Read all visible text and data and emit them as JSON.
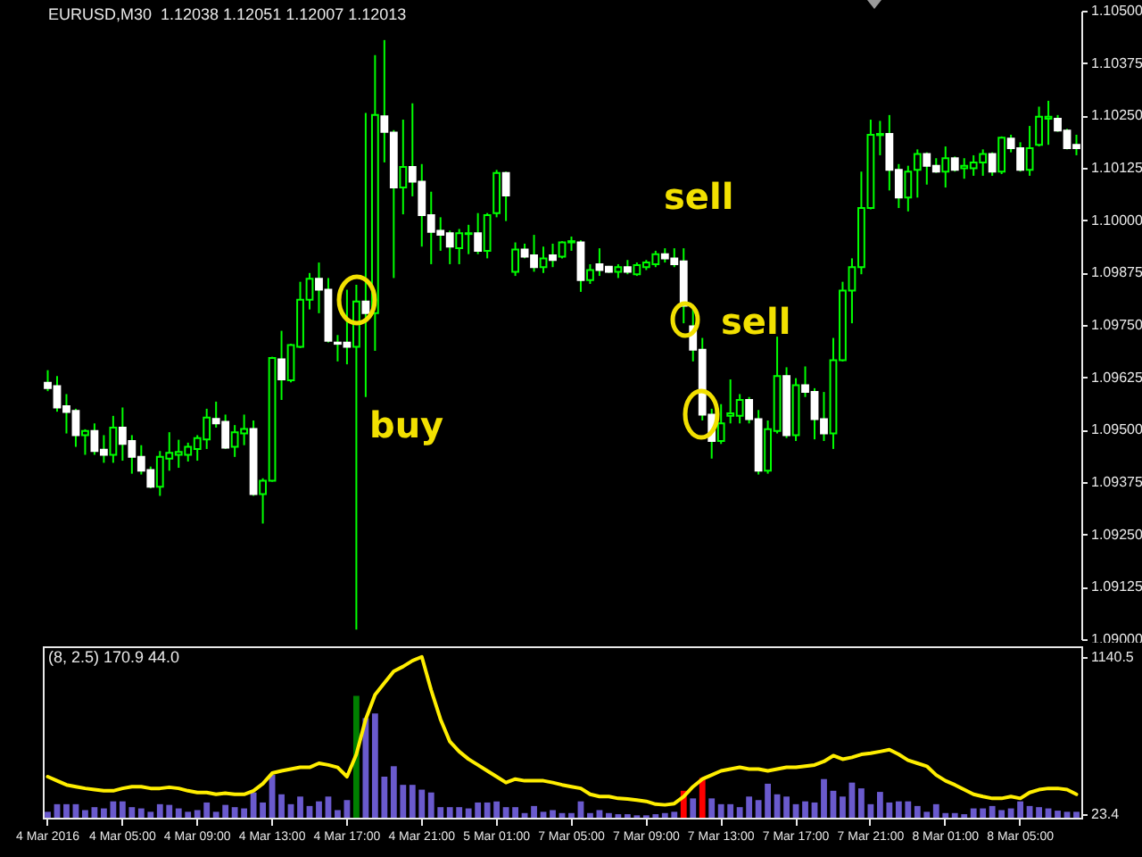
{
  "chart_data": [
    {
      "type": "candlestick",
      "title": "EURUSD,M30  1.12038 1.12051 1.12007 1.12013",
      "ohlc": [
        [
          1.09612,
          1.09642,
          1.09592,
          1.09599
        ],
        [
          1.09604,
          1.09628,
          1.09543,
          1.09553
        ],
        [
          1.09556,
          1.09585,
          1.09491,
          1.09542
        ],
        [
          1.09545,
          1.0955,
          1.09459,
          1.09487
        ],
        [
          1.09487,
          1.09501,
          1.0944,
          1.09497
        ],
        [
          1.09497,
          1.09515,
          1.0944,
          1.09449
        ],
        [
          1.09452,
          1.09487,
          1.09421,
          1.0944
        ],
        [
          1.0944,
          1.09533,
          1.09421,
          1.09505
        ],
        [
          1.09505,
          1.09553,
          1.09426,
          1.09466
        ],
        [
          1.09473,
          1.09487,
          1.09395,
          1.09435
        ],
        [
          1.09435,
          1.09463,
          1.09393,
          1.09402
        ],
        [
          1.09404,
          1.09412,
          1.0936,
          1.09364
        ],
        [
          1.09364,
          1.09449,
          1.09342,
          1.09435
        ],
        [
          1.09431,
          1.09494,
          1.09402,
          1.09445
        ],
        [
          1.0944,
          1.09476,
          1.09409,
          1.09447
        ],
        [
          1.0944,
          1.09469,
          1.09424,
          1.09459
        ],
        [
          1.09454,
          1.09487,
          1.09426,
          1.0948
        ],
        [
          1.09477,
          1.0955,
          1.09454,
          1.09529
        ],
        [
          1.09526,
          1.09567,
          1.09505,
          1.09515
        ],
        [
          1.09519,
          1.09536,
          1.09454,
          1.09457
        ],
        [
          1.09459,
          1.09511,
          1.09435,
          1.09494
        ],
        [
          1.09491,
          1.09536,
          1.09463,
          1.09502
        ],
        [
          1.09502,
          1.09522,
          1.09342,
          1.09346
        ],
        [
          1.09346,
          1.09384,
          1.09276,
          1.09378
        ],
        [
          1.09378,
          1.09674,
          1.09376,
          1.09671
        ],
        [
          1.09668,
          1.09736,
          1.09571,
          1.0962
        ],
        [
          1.09618,
          1.09705,
          1.09613,
          1.09702
        ],
        [
          1.09698,
          1.09853,
          1.09695,
          1.0981
        ],
        [
          1.0981,
          1.09874,
          1.09787,
          1.0986
        ],
        [
          1.0986,
          1.09899,
          1.09778,
          1.09834
        ],
        [
          1.09834,
          1.09862,
          1.09708,
          1.09712
        ],
        [
          1.09708,
          1.09726,
          1.09663,
          1.09705
        ],
        [
          1.09708,
          1.09834,
          1.09656,
          1.09698
        ],
        [
          1.09698,
          1.09846,
          1.09023,
          1.09806
        ],
        [
          1.09806,
          1.10256,
          1.09578,
          1.09778
        ],
        [
          1.09778,
          1.10394,
          1.09688,
          1.10251
        ],
        [
          1.10248,
          1.1043,
          1.10138,
          1.10211
        ],
        [
          1.10209,
          1.10215,
          1.09862,
          1.10078
        ],
        [
          1.10078,
          1.1024,
          1.10014,
          1.10127
        ],
        [
          1.10127,
          1.10279,
          1.10057,
          1.10092
        ],
        [
          1.10092,
          1.10134,
          1.09937,
          1.10012
        ],
        [
          1.10012,
          1.10068,
          1.09895,
          1.09972
        ],
        [
          1.09975,
          1.10007,
          1.09927,
          1.09965
        ],
        [
          1.09969,
          1.09975,
          1.09895,
          1.09937
        ],
        [
          1.09933,
          1.09979,
          1.09895,
          1.09969
        ],
        [
          1.09967,
          1.09989,
          1.09919,
          1.09969
        ],
        [
          1.09969,
          1.10017,
          1.09919,
          1.09927
        ],
        [
          1.09927,
          1.10017,
          1.09909,
          1.10012
        ],
        [
          1.10017,
          1.1012,
          1.10007,
          1.10113
        ],
        [
          1.10113,
          1.10116,
          1.09998,
          1.10059
        ],
        [
          1.09877,
          1.09947,
          1.09867,
          1.0993
        ],
        [
          1.0993,
          1.09944,
          1.09909,
          1.09913
        ],
        [
          1.09916,
          1.09965,
          1.09877,
          1.09888
        ],
        [
          1.09888,
          1.09937,
          1.09874,
          1.09909
        ],
        [
          1.09916,
          1.09944,
          1.09888,
          1.09905
        ],
        [
          1.09913,
          1.0995,
          1.09909,
          1.09947
        ],
        [
          1.09947,
          1.09961,
          1.09927,
          1.0995
        ],
        [
          1.09947,
          1.09952,
          1.09829,
          1.09857
        ],
        [
          1.09857,
          1.09895,
          1.09848,
          1.09881
        ],
        [
          1.09895,
          1.09933,
          1.09867,
          1.09881
        ],
        [
          1.09889,
          1.09891,
          1.09874,
          1.09877
        ],
        [
          1.09877,
          1.09895,
          1.09862,
          1.09888
        ],
        [
          1.09888,
          1.09905,
          1.09871,
          1.09877
        ],
        [
          1.09871,
          1.09899,
          1.09867,
          1.09893
        ],
        [
          1.09888,
          1.09905,
          1.09881,
          1.09899
        ],
        [
          1.09895,
          1.09927,
          1.09888,
          1.09919
        ],
        [
          1.09919,
          1.09933,
          1.09899,
          1.09909
        ],
        [
          1.09909,
          1.09933,
          1.09888,
          1.09895
        ],
        [
          1.09902,
          1.09933,
          1.09754,
          1.09796
        ],
        [
          1.09747,
          1.09789,
          1.09663,
          1.09691
        ],
        [
          1.09691,
          1.09719,
          1.09522,
          1.09536
        ],
        [
          1.09536,
          1.0955,
          1.09431,
          1.09473
        ],
        [
          1.09473,
          1.09561,
          1.09466,
          1.09515
        ],
        [
          1.09533,
          1.0962,
          1.09515,
          1.09539
        ],
        [
          1.09533,
          1.09585,
          1.09515,
          1.09571
        ],
        [
          1.09571,
          1.09578,
          1.09515,
          1.09525
        ],
        [
          1.09525,
          1.09547,
          1.09393,
          1.09402
        ],
        [
          1.09402,
          1.09522,
          1.09395,
          1.09501
        ],
        [
          1.09497,
          1.09722,
          1.09491,
          1.09628
        ],
        [
          1.09628,
          1.09649,
          1.0948,
          1.09487
        ],
        [
          1.09487,
          1.09623,
          1.09473,
          1.09606
        ],
        [
          1.09606,
          1.09651,
          1.09578,
          1.0959
        ],
        [
          1.0959,
          1.09599,
          1.09477,
          1.09525
        ],
        [
          1.09525,
          1.0959,
          1.09473,
          1.09491
        ],
        [
          1.09491,
          1.09719,
          1.09454,
          1.09666
        ],
        [
          1.09666,
          1.09853,
          1.09663,
          1.09832
        ],
        [
          1.09832,
          1.09909,
          1.09754,
          1.09888
        ],
        [
          1.09888,
          1.10116,
          1.09871,
          1.10029
        ],
        [
          1.10029,
          1.1024,
          1.10026,
          1.10204
        ],
        [
          1.10203,
          1.10237,
          1.10155,
          1.10206
        ],
        [
          1.10206,
          1.10251,
          1.10071,
          1.1012
        ],
        [
          1.1012,
          1.10134,
          1.10029,
          1.10054
        ],
        [
          1.10054,
          1.1013,
          1.10021,
          1.10116
        ],
        [
          1.1012,
          1.10169,
          1.10054,
          1.10158
        ],
        [
          1.10158,
          1.10162,
          1.10085,
          1.1013
        ],
        [
          1.1013,
          1.10148,
          1.10113,
          1.10116
        ],
        [
          1.10116,
          1.10176,
          1.10078,
          1.10148
        ],
        [
          1.10148,
          1.10152,
          1.10116,
          1.1012
        ],
        [
          1.10124,
          1.10148,
          1.10099,
          1.1013
        ],
        [
          1.10124,
          1.10155,
          1.10106,
          1.10138
        ],
        [
          1.10138,
          1.10169,
          1.10106,
          1.10158
        ],
        [
          1.10158,
          1.10162,
          1.10106,
          1.10116
        ],
        [
          1.10116,
          1.102,
          1.1011,
          1.10197
        ],
        [
          1.10195,
          1.10204,
          1.10162,
          1.10172
        ],
        [
          1.10172,
          1.10186,
          1.10116,
          1.1012
        ],
        [
          1.1012,
          1.10225,
          1.10106,
          1.10172
        ],
        [
          1.1018,
          1.10271,
          1.10176,
          1.10247
        ],
        [
          1.10242,
          1.10285,
          1.1018,
          1.10247
        ],
        [
          1.10242,
          1.10251,
          1.10211,
          1.10214
        ],
        [
          1.10214,
          1.10218,
          1.10169,
          1.10172
        ],
        [
          1.1018,
          1.10204,
          1.10155,
          1.10172
        ]
      ],
      "ylim": [
        1.09,
        1.105
      ],
      "yticks": [
        {
          "value": 1.09,
          "label": "1.09000"
        },
        {
          "value": 1.09125,
          "label": "1.09125"
        },
        {
          "value": 1.0925,
          "label": "1.09250"
        },
        {
          "value": 1.09375,
          "label": "1.09375"
        },
        {
          "value": 1.095,
          "label": "1.09500"
        },
        {
          "value": 1.09625,
          "label": "1.09625"
        },
        {
          "value": 1.0975,
          "label": "1.09750"
        },
        {
          "value": 1.09875,
          "label": "1.09875"
        },
        {
          "value": 1.1,
          "label": "1.10000"
        },
        {
          "value": 1.10125,
          "label": "1.10125"
        },
        {
          "value": 1.1025,
          "label": "1.10250"
        },
        {
          "value": 1.10375,
          "label": "1.10375"
        },
        {
          "value": 1.105,
          "label": "1.10500"
        }
      ],
      "tick_labels": "y",
      "annotations": [
        "buy",
        "sell",
        "sell"
      ]
    },
    {
      "type": "bar",
      "title": "(8, 2.5) 170.9 44.0",
      "categories": [
        "4 Mar 2016",
        null,
        null,
        null,
        null,
        null,
        null,
        null,
        "4 Mar 05:00",
        null,
        null,
        null,
        null,
        null,
        null,
        null,
        "4 Mar 09:00",
        null,
        null,
        null,
        null,
        null,
        null,
        null,
        "4 Mar 13:00",
        null,
        null,
        null,
        null,
        null,
        null,
        null,
        "4 Mar 17:00",
        null,
        null,
        null,
        null,
        null,
        null,
        null,
        "4 Mar 21:00",
        null,
        null,
        null,
        null,
        null,
        null,
        null,
        "5 Mar 01:00",
        null,
        null,
        null,
        null,
        null,
        null,
        null,
        "7 Mar 05:00",
        null,
        null,
        null,
        null,
        null,
        null,
        null,
        "7 Mar 09:00",
        null,
        null,
        null,
        null,
        null,
        null,
        null,
        "7 Mar 13:00",
        null,
        null,
        null,
        null,
        null,
        null,
        null,
        "7 Mar 17:00",
        null,
        null,
        null,
        null,
        null,
        null,
        null,
        "7 Mar 21:00",
        null,
        null,
        null,
        null,
        null,
        null,
        null,
        "8 Mar 01:00",
        null,
        null,
        null,
        null,
        null,
        null,
        null,
        "8 Mar 05:00",
        null,
        null,
        null,
        null,
        null,
        null
      ],
      "series": [
        {
          "type": "bar",
          "colors": [
            "#6a5acd",
            "#6a5acd",
            "#6a5acd",
            "#6a5acd",
            "#6a5acd",
            "#6a5acd",
            "#6a5acd",
            "#6a5acd",
            "#6a5acd",
            "#6a5acd",
            "#6a5acd",
            "#6a5acd",
            "#6a5acd",
            "#6a5acd",
            "#6a5acd",
            "#6a5acd",
            "#6a5acd",
            "#6a5acd",
            "#6a5acd",
            "#6a5acd",
            "#6a5acd",
            "#6a5acd",
            "#6a5acd",
            "#6a5acd",
            "#6a5acd",
            "#6a5acd",
            "#6a5acd",
            "#6a5acd",
            "#6a5acd",
            "#6a5acd",
            "#6a5acd",
            "#6a5acd",
            "#6a5acd",
            "#008000",
            "#6a5acd",
            "#6a5acd",
            "#6a5acd",
            "#6a5acd",
            "#6a5acd",
            "#6a5acd",
            "#6a5acd",
            "#6a5acd",
            "#6a5acd",
            "#6a5acd",
            "#6a5acd",
            "#6a5acd",
            "#6a5acd",
            "#6a5acd",
            "#6a5acd",
            "#6a5acd",
            "#6a5acd",
            "#6a5acd",
            "#6a5acd",
            "#6a5acd",
            "#6a5acd",
            "#6a5acd",
            "#6a5acd",
            "#6a5acd",
            "#6a5acd",
            "#6a5acd",
            "#6a5acd",
            "#6a5acd",
            "#6a5acd",
            "#6a5acd",
            "#6a5acd",
            "#6a5acd",
            "#6a5acd",
            "#6a5acd",
            "#ff0000",
            "#6a5acd",
            "#ff0000",
            "#6a5acd",
            "#6a5acd",
            "#6a5acd",
            "#6a5acd",
            "#6a5acd",
            "#6a5acd",
            "#6a5acd",
            "#6a5acd",
            "#6a5acd",
            "#6a5acd",
            "#6a5acd",
            "#6a5acd",
            "#6a5acd",
            "#6a5acd",
            "#6a5acd",
            "#6a5acd",
            "#6a5acd",
            "#6a5acd",
            "#6a5acd",
            "#6a5acd",
            "#6a5acd",
            "#6a5acd",
            "#6a5acd",
            "#6a5acd",
            "#6a5acd",
            "#6a5acd",
            "#6a5acd",
            "#6a5acd",
            "#6a5acd",
            "#6a5acd",
            "#6a5acd",
            "#6a5acd",
            "#6a5acd",
            "#6a5acd",
            "#6a5acd",
            "#6a5acd",
            "#6a5acd",
            "#6a5acd",
            "#6a5acd",
            "#6a5acd"
          ],
          "values": [
            42,
            96,
            96,
            96,
            54,
            75,
            66,
            116,
            116,
            75,
            66,
            42,
            96,
            91,
            66,
            42,
            54,
            108,
            42,
            91,
            75,
            66,
            179,
            108,
            303,
            166,
            96,
            150,
            83,
            116,
            150,
            54,
            125,
            864,
            706,
            739,
            291,
            365,
            233,
            233,
            199,
            179,
            75,
            75,
            75,
            66,
            108,
            108,
            116,
            75,
            75,
            33,
            83,
            42,
            54,
            33,
            33,
            116,
            33,
            54,
            33,
            25,
            25,
            17,
            17,
            25,
            33,
            42,
            191,
            137,
            282,
            137,
            96,
            96,
            75,
            150,
            125,
            241,
            166,
            150,
            96,
            116,
            108,
            274,
            191,
            150,
            249,
            208,
            96,
            183,
            108,
            116,
            116,
            83,
            42,
            96,
            33,
            33,
            25,
            66,
            66,
            83,
            54,
            66,
            116,
            83,
            75,
            66,
            50,
            42,
            42
          ]
        },
        {
          "type": "line",
          "color": "#ffee00",
          "values": [
            291,
            262,
            233,
            220,
            208,
            199,
            191,
            191,
            208,
            220,
            220,
            208,
            208,
            216,
            208,
            191,
            179,
            179,
            166,
            174,
            166,
            166,
            191,
            241,
            316,
            332,
            345,
            357,
            357,
            386,
            374,
            357,
            291,
            449,
            698,
            872,
            955,
            1038,
            1072,
            1113,
            1140.5,
            905,
            698,
            540,
            469,
            415,
            374,
            332,
            291,
            249,
            274,
            262,
            262,
            262,
            249,
            233,
            220,
            208,
            166,
            150,
            150,
            137,
            133,
            125,
            116,
            96,
            91,
            100,
            150,
            220,
            274,
            303,
            332,
            345,
            357,
            345,
            345,
            332,
            345,
            357,
            357,
            365,
            374,
            399,
            440,
            415,
            428,
            449,
            457,
            469,
            482,
            449,
            407,
            386,
            365,
            303,
            262,
            233,
            199,
            166,
            150,
            137,
            137,
            150,
            137,
            179,
            199,
            208,
            208,
            199,
            166
          ]
        }
      ],
      "ylim": [
        0,
        1215
      ],
      "yticks": [
        23.4,
        1140.5
      ]
    }
  ]
}
